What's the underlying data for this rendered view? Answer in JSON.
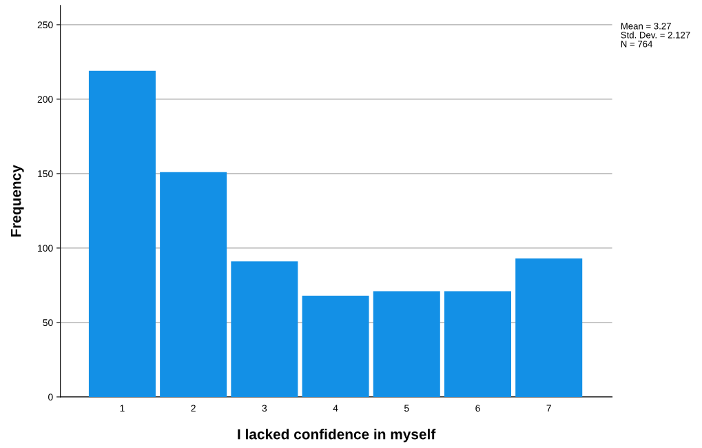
{
  "chart_data": {
    "type": "bar",
    "xlabel": "I lacked confidence in myself",
    "ylabel": "Frequency",
    "categories": [
      "1",
      "2",
      "3",
      "4",
      "5",
      "6",
      "7"
    ],
    "values": [
      219,
      151,
      91,
      68,
      71,
      71,
      93
    ],
    "color": "#1390e6",
    "ylim": [
      0,
      263
    ],
    "yticks": [
      0,
      50,
      100,
      150,
      200,
      250
    ],
    "grid": "y",
    "annotations": [
      "Mean = 3.27",
      "Std. Dev. = 2.127",
      "N = 764"
    ]
  }
}
